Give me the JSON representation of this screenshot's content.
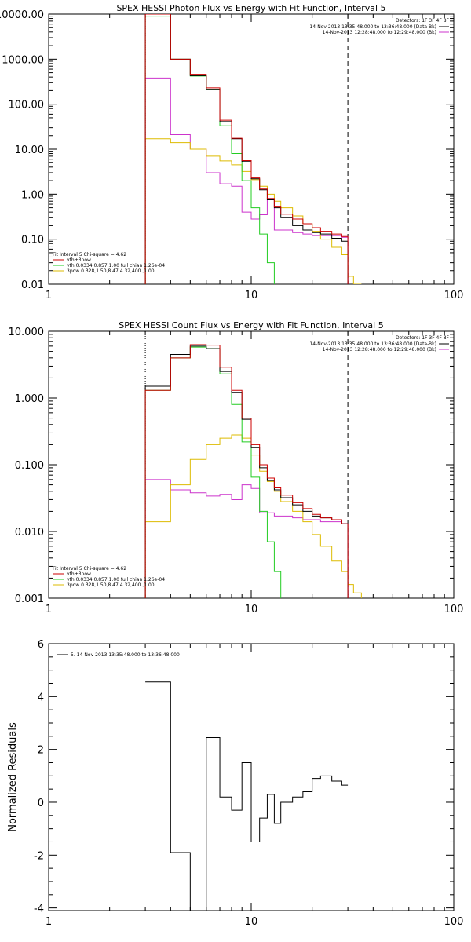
{
  "chart_data": [
    {
      "type": "line",
      "title": "SPEX HESSI Photon Flux vs Energy with Fit Function, Interval 5",
      "xlabel": "",
      "ylabel": "",
      "xscale": "log",
      "yscale": "log",
      "xlim": [
        1,
        100
      ],
      "ylim": [
        0.01,
        10000
      ],
      "xticks": [
        "1",
        "10",
        "100"
      ],
      "yticks": [
        "0.01",
        "0.10",
        "1.00",
        "10.00",
        "100.00",
        "1000.00",
        "10000.00"
      ],
      "dotted_line_x": 3,
      "dashed_line_x": 30,
      "legend_top": {
        "detectors": "Detectors: 1F 3F 4F 8F",
        "entries": [
          {
            "label": "14-Nov-2013 13:35:48.000 to 13:36:48.000 (Data-Bk)",
            "color": "#000000"
          },
          {
            "label": "14-Nov-2013 12:28:48.000 to 12:29:48.000 (Bk)",
            "color": "#cc33cc"
          }
        ]
      },
      "legend_bottom": {
        "header": "Fit Interval 5   Chi-square = 4.62",
        "entries": [
          {
            "label": "vth+3pow",
            "color": "#cc0000"
          },
          {
            "label": "vth 0.0334,0.857,1.00  full chian 1.26e-04",
            "color": "#22cc22"
          },
          {
            "label": "3pow 0.328,1.50,8.47,4.32,400.,1.00",
            "color": "#ddbb00"
          }
        ]
      },
      "edges": [
        3,
        4,
        5,
        6,
        7,
        8,
        9,
        10,
        11,
        12,
        13,
        14,
        16,
        18,
        20,
        22,
        25,
        28,
        30,
        32,
        35
      ],
      "series": [
        {
          "name": "Data-Bk",
          "color": "#000000",
          "values": [
            10000,
            1000,
            430,
            210,
            41,
            17,
            5.3,
            2.2,
            1.25,
            0.75,
            0.5,
            0.3,
            0.2,
            0.16,
            0.14,
            0.13,
            0.105,
            0.09,
            null,
            null
          ]
        },
        {
          "name": "vth+3pow",
          "color": "#cc0000",
          "values": [
            10000,
            1000,
            460,
            230,
            44,
            17.5,
            5.6,
            2.3,
            1.3,
            0.8,
            0.52,
            0.36,
            0.28,
            0.22,
            0.18,
            0.15,
            0.13,
            0.115,
            null,
            null
          ]
        },
        {
          "name": "vth",
          "color": "#22cc22",
          "values": [
            9000,
            1000,
            420,
            210,
            33,
            8,
            2,
            0.5,
            0.13,
            0.03,
            0.008,
            null,
            null,
            null,
            null,
            null,
            null,
            null,
            null,
            null
          ]
        },
        {
          "name": "3pow",
          "color": "#ddbb00",
          "values": [
            17,
            14,
            10,
            7,
            5.5,
            4.5,
            3.2,
            2.1,
            1.5,
            1.0,
            0.7,
            0.5,
            0.33,
            0.22,
            0.15,
            0.1,
            0.066,
            0.045,
            0.015,
            0.01
          ]
        },
        {
          "name": "Bk",
          "color": "#cc33cc",
          "values": [
            380,
            21,
            10,
            3,
            1.7,
            1.5,
            0.4,
            0.28,
            0.35,
            0.8,
            0.16,
            0.16,
            0.14,
            0.13,
            0.12,
            0.12,
            0.12,
            0.11,
            null,
            null
          ]
        }
      ]
    },
    {
      "type": "line",
      "title": "SPEX HESSI Count Flux vs Energy with Fit Function, Interval 5",
      "xlabel": "",
      "ylabel": "",
      "xscale": "log",
      "yscale": "log",
      "xlim": [
        1,
        100
      ],
      "ylim": [
        0.001,
        10
      ],
      "xticks": [
        "1",
        "10",
        "100"
      ],
      "yticks": [
        "0.001",
        "0.010",
        "0.100",
        "1.000",
        "10.000"
      ],
      "dotted_line_x": 3,
      "dashed_line_x": 30,
      "legend_top": {
        "detectors": "Detectors: 1F 3F 4F 8F",
        "entries": [
          {
            "label": "14-Nov-2013 13:35:48.000 to 13:36:48.000 (Data-Bk)",
            "color": "#000000"
          },
          {
            "label": "14-Nov-2013 12:28:48.000 to 12:29:48.000 (Bk)",
            "color": "#cc33cc"
          }
        ]
      },
      "legend_bottom": {
        "header": "Fit Interval 5   Chi-square = 4.62",
        "entries": [
          {
            "label": "vth+3pow",
            "color": "#cc0000"
          },
          {
            "label": "vth 0.0334,0.857,1.00  full chian 1.26e-04",
            "color": "#22cc22"
          },
          {
            "label": "3pow 0.328,1.50,8.47,4.32,400.,1.00",
            "color": "#ddbb00"
          }
        ]
      },
      "edges": [
        3,
        4,
        5,
        6,
        7,
        8,
        9,
        10,
        11,
        12,
        13,
        14,
        16,
        18,
        20,
        22,
        25,
        28,
        30,
        32,
        35
      ],
      "series": [
        {
          "name": "Data-Bk",
          "color": "#000000",
          "values": [
            1.5,
            4.5,
            6.0,
            5.5,
            2.5,
            1.2,
            0.48,
            0.18,
            0.09,
            0.058,
            0.042,
            0.032,
            0.025,
            0.02,
            0.017,
            0.016,
            0.015,
            0.013,
            null,
            null
          ]
        },
        {
          "name": "vth+3pow",
          "color": "#cc0000",
          "values": [
            1.3,
            4.0,
            6.3,
            6.2,
            2.9,
            1.3,
            0.5,
            0.2,
            0.1,
            0.063,
            0.045,
            0.035,
            0.027,
            0.022,
            0.018,
            0.016,
            0.015,
            0.013,
            null,
            null
          ]
        },
        {
          "name": "vth",
          "color": "#22cc22",
          "values": [
            1.3,
            4.0,
            5.8,
            5.5,
            2.3,
            0.8,
            0.22,
            0.065,
            0.02,
            0.007,
            0.0025,
            null,
            null,
            null,
            null,
            null,
            null,
            null,
            null,
            null
          ]
        },
        {
          "name": "3pow",
          "color": "#ddbb00",
          "values": [
            0.014,
            0.05,
            0.12,
            0.2,
            0.25,
            0.28,
            0.25,
            0.14,
            0.08,
            0.056,
            0.04,
            0.028,
            0.02,
            0.014,
            0.009,
            0.006,
            0.0036,
            0.0025,
            0.0016,
            0.0012
          ]
        },
        {
          "name": "Bk",
          "color": "#cc33cc",
          "values": [
            0.06,
            0.042,
            0.038,
            0.034,
            0.036,
            0.03,
            0.05,
            0.044,
            0.019,
            0.019,
            0.017,
            0.017,
            0.016,
            0.015,
            0.015,
            0.014,
            0.014,
            0.013,
            null,
            null
          ]
        }
      ]
    },
    {
      "type": "line",
      "title": "",
      "xlabel": "",
      "ylabel": "Normalized Residuals",
      "xscale": "log",
      "yscale": "linear",
      "xlim": [
        1,
        100
      ],
      "ylim": [
        -4.1,
        6
      ],
      "xticks": [
        "1",
        "10",
        "100"
      ],
      "yticks": [
        "-4",
        "-2",
        "0",
        "2",
        "4",
        "6"
      ],
      "legend": {
        "label": "5. 14-Nov-2013 13:35:48.000 to 13:36:48.000",
        "color": "#000000"
      },
      "edges": [
        3,
        4,
        5,
        6,
        7,
        8,
        9,
        10,
        11,
        12,
        13,
        14,
        16,
        18,
        20,
        22,
        25,
        28,
        30
      ],
      "series": [
        {
          "name": "5. 14-Nov-2013 13:35:48.000 to 13:36:48.000",
          "color": "#000000",
          "values": [
            4.55,
            -1.9,
            -4.1,
            2.45,
            0.2,
            -0.3,
            1.5,
            -1.5,
            -0.6,
            0.3,
            -0.8,
            0.0,
            0.2,
            0.4,
            0.9,
            1.0,
            0.8,
            0.65
          ]
        }
      ]
    }
  ]
}
